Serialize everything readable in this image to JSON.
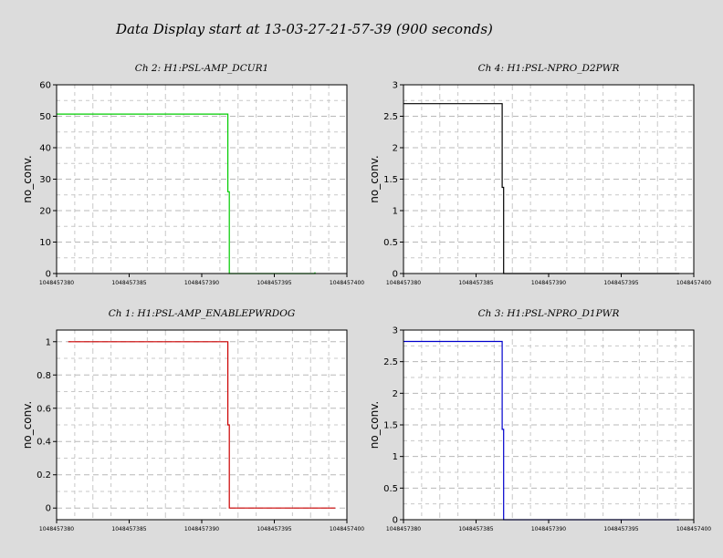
{
  "title": "Data Display start at 13-03-27-21-57-39 (900 seconds)",
  "chart_data": [
    {
      "type": "line",
      "title": "Ch 2: H1:PSL-AMP_DCUR1",
      "ylabel": "no_conv.",
      "color": "#00cc00",
      "xlim": [
        1048457380,
        1048457400
      ],
      "ylim": [
        0,
        60
      ],
      "yticks": [
        0,
        10,
        20,
        30,
        40,
        50,
        60
      ],
      "ytick_labels": [
        "0",
        "10",
        "20",
        "30",
        "40",
        "50",
        "60"
      ],
      "xticks": [
        1048457380,
        1048457385,
        1048457390,
        1048457395,
        1048457400
      ],
      "xtick_labels": [
        "1048457380",
        "1048457385",
        "1048457390",
        "1048457395",
        "1048457400"
      ],
      "grid": true,
      "series": [
        {
          "x": [
            1048457380,
            1048457391.8,
            1048457391.8,
            1048457391.9,
            1048457391.9,
            1048457397.8,
            1048457397.8,
            1048457397.8
          ],
          "y": [
            50.7,
            50.7,
            26,
            26,
            0,
            0,
            0.4,
            0
          ]
        }
      ]
    },
    {
      "type": "line",
      "title": "Ch 4: H1:PSL-NPRO_D2PWR",
      "ylabel": "no_conv.",
      "color": "#000000",
      "xlim": [
        1048457380,
        1048457400
      ],
      "ylim": [
        0,
        3
      ],
      "yticks": [
        0,
        0.5,
        1,
        1.5,
        2,
        2.5,
        3
      ],
      "ytick_labels": [
        "0",
        "0.5",
        "1",
        "1.5",
        "2",
        "2.5",
        "3"
      ],
      "xticks": [
        1048457380,
        1048457385,
        1048457390,
        1048457395,
        1048457400
      ],
      "xtick_labels": [
        "1048457380",
        "1048457385",
        "1048457390",
        "1048457395",
        "1048457400"
      ],
      "grid": true,
      "series": [
        {
          "x": [
            1048457380,
            1048457386.8,
            1048457386.8,
            1048457386.9,
            1048457386.9,
            1048457399
          ],
          "y": [
            2.7,
            2.7,
            1.37,
            1.37,
            0,
            0
          ]
        }
      ]
    },
    {
      "type": "line",
      "title": "Ch 1: H1:PSL-AMP_ENABLEPWRDOG",
      "ylabel": "no_conv.",
      "color": "#cc0000",
      "xlim": [
        1048457380,
        1048457400
      ],
      "ylim": [
        -0.07,
        1.07
      ],
      "yticks": [
        0,
        0.2,
        0.4,
        0.6,
        0.8,
        1
      ],
      "ytick_labels": [
        "0",
        "0.2",
        "0.4",
        "0.6",
        "0.8",
        "1"
      ],
      "xticks": [
        1048457380,
        1048457385,
        1048457390,
        1048457395,
        1048457400
      ],
      "xtick_labels": [
        "1048457380",
        "1048457385",
        "1048457390",
        "1048457395",
        "1048457400"
      ],
      "grid": true,
      "series": [
        {
          "x": [
            1048457380.8,
            1048457391.8,
            1048457391.8,
            1048457391.9,
            1048457391.9,
            1048457399.2
          ],
          "y": [
            1,
            1,
            0.5,
            0.5,
            0,
            0
          ]
        }
      ]
    },
    {
      "type": "line",
      "title": "Ch 3: H1:PSL-NPRO_D1PWR",
      "ylabel": "no_conv.",
      "color": "#0000cc",
      "xlim": [
        1048457380,
        1048457400
      ],
      "ylim": [
        0,
        3
      ],
      "yticks": [
        0,
        0.5,
        1,
        1.5,
        2,
        2.5,
        3
      ],
      "ytick_labels": [
        "0",
        "0.5",
        "1",
        "1.5",
        "2",
        "2.5",
        "3"
      ],
      "xticks": [
        1048457380,
        1048457385,
        1048457390,
        1048457395,
        1048457400
      ],
      "xtick_labels": [
        "1048457380",
        "1048457385",
        "1048457390",
        "1048457395",
        "1048457400"
      ],
      "grid": true,
      "series": [
        {
          "x": [
            1048457380,
            1048457386.8,
            1048457386.8,
            1048457386.9,
            1048457386.9,
            1048457399
          ],
          "y": [
            2.82,
            2.82,
            1.43,
            1.43,
            0,
            0
          ]
        }
      ]
    }
  ]
}
